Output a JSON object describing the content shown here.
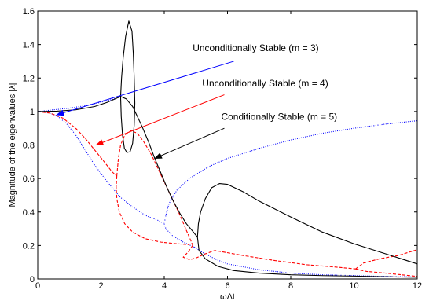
{
  "chart_data": {
    "type": "line",
    "title": "",
    "xlabel": "ωΔt",
    "ylabel": "Magnitude of the eigenvalues |λ|",
    "xlim": [
      0,
      12
    ],
    "ylim": [
      0,
      1.6
    ],
    "xticks": [
      0,
      2,
      4,
      6,
      8,
      10,
      12
    ],
    "yticks": [
      0,
      0.2,
      0.4,
      0.6,
      0.8,
      1,
      1.2,
      1.4,
      1.6
    ],
    "grid": false,
    "legend": "none",
    "colors": {
      "m3": "#0000ff",
      "m4": "#ff0000",
      "m5": "#000000"
    },
    "series": [
      {
        "key": "m3",
        "style": "dotted",
        "color": "#0000ff",
        "points": [
          [
            0,
            1.0
          ],
          [
            0.3,
            0.995
          ],
          [
            0.6,
            0.975
          ],
          [
            0.9,
            0.93
          ],
          [
            1.2,
            0.86
          ],
          [
            1.5,
            0.77
          ],
          [
            1.8,
            0.68
          ],
          [
            2.2,
            0.58
          ],
          [
            2.6,
            0.49
          ],
          [
            3.0,
            0.43
          ],
          [
            3.4,
            0.38
          ],
          [
            3.8,
            0.35
          ],
          [
            4.0,
            0.33
          ]
        ]
      },
      {
        "key": "m3",
        "style": "dotted",
        "color": "#0000ff",
        "points": [
          [
            0,
            1.0
          ],
          [
            0.5,
            1.01
          ],
          [
            1.0,
            1.02
          ],
          [
            1.5,
            1.035
          ],
          [
            2.0,
            1.055
          ],
          [
            2.4,
            1.075
          ],
          [
            2.6,
            1.085
          ]
        ]
      },
      {
        "key": "m3",
        "style": "dotted",
        "color": "#0000ff",
        "points": [
          [
            4.95,
            0.19
          ],
          [
            4.6,
            0.22
          ],
          [
            4.25,
            0.26
          ],
          [
            4.05,
            0.3
          ],
          [
            4.0,
            0.33
          ],
          [
            4.05,
            0.38
          ],
          [
            4.15,
            0.45
          ],
          [
            4.4,
            0.53
          ],
          [
            4.8,
            0.6
          ],
          [
            5.4,
            0.67
          ],
          [
            6.0,
            0.72
          ],
          [
            7.0,
            0.78
          ],
          [
            8.0,
            0.83
          ],
          [
            9.0,
            0.87
          ],
          [
            10.0,
            0.9
          ],
          [
            11.0,
            0.925
          ],
          [
            12.0,
            0.945
          ]
        ]
      },
      {
        "key": "m3",
        "style": "dotted",
        "color": "#0000ff",
        "points": [
          [
            4.95,
            0.19
          ],
          [
            5.2,
            0.16
          ],
          [
            5.6,
            0.12
          ],
          [
            6.0,
            0.09
          ],
          [
            7.0,
            0.055
          ],
          [
            8.0,
            0.035
          ],
          [
            9.0,
            0.025
          ],
          [
            10.0,
            0.02
          ],
          [
            11.0,
            0.015
          ],
          [
            12.0,
            0.012
          ]
        ]
      },
      {
        "key": "m4",
        "style": "dashed",
        "color": "#ff0000",
        "points": [
          [
            0,
            1.0
          ],
          [
            0.4,
            0.99
          ],
          [
            0.8,
            0.96
          ],
          [
            1.2,
            0.9
          ],
          [
            1.5,
            0.84
          ],
          [
            1.8,
            0.77
          ],
          [
            2.1,
            0.7
          ],
          [
            2.35,
            0.64
          ],
          [
            2.5,
            0.615
          ]
        ]
      },
      {
        "key": "m4",
        "style": "dashed",
        "color": "#ff0000",
        "points": [
          [
            2.5,
            0.615
          ],
          [
            2.48,
            0.55
          ],
          [
            2.5,
            0.48
          ],
          [
            2.58,
            0.4
          ],
          [
            2.75,
            0.33
          ],
          [
            3.0,
            0.28
          ],
          [
            3.4,
            0.24
          ],
          [
            3.9,
            0.22
          ],
          [
            4.4,
            0.21
          ],
          [
            4.8,
            0.205
          ]
        ]
      },
      {
        "key": "m4",
        "style": "dashed",
        "color": "#ff0000",
        "points": [
          [
            2.5,
            0.615
          ],
          [
            2.55,
            0.72
          ],
          [
            2.62,
            0.8
          ],
          [
            2.75,
            0.86
          ],
          [
            2.95,
            0.885
          ],
          [
            3.15,
            0.87
          ],
          [
            3.35,
            0.82
          ],
          [
            3.6,
            0.74
          ],
          [
            3.9,
            0.62
          ],
          [
            4.2,
            0.5
          ],
          [
            4.5,
            0.38
          ],
          [
            4.7,
            0.29
          ],
          [
            4.85,
            0.225
          ],
          [
            4.9,
            0.2
          ]
        ]
      },
      {
        "key": "m4",
        "style": "dashed",
        "color": "#ff0000",
        "points": [
          [
            4.9,
            0.2
          ],
          [
            4.75,
            0.16
          ],
          [
            4.6,
            0.13
          ],
          [
            4.8,
            0.115
          ],
          [
            5.0,
            0.125
          ],
          [
            5.3,
            0.15
          ],
          [
            5.6,
            0.17
          ],
          [
            6.5,
            0.14
          ],
          [
            7.5,
            0.11
          ],
          [
            8.5,
            0.085
          ],
          [
            9.5,
            0.07
          ],
          [
            10.05,
            0.06
          ]
        ]
      },
      {
        "key": "m4",
        "style": "dashed",
        "color": "#ff0000",
        "points": [
          [
            10.05,
            0.06
          ],
          [
            10.3,
            0.095
          ],
          [
            10.8,
            0.12
          ],
          [
            11.4,
            0.14
          ],
          [
            12.0,
            0.175
          ]
        ]
      },
      {
        "key": "m4",
        "style": "dashed",
        "color": "#ff0000",
        "points": [
          [
            10.05,
            0.06
          ],
          [
            10.4,
            0.045
          ],
          [
            11.0,
            0.035
          ],
          [
            11.5,
            0.025
          ],
          [
            12.0,
            0.015
          ]
        ]
      },
      {
        "key": "m5",
        "style": "solid",
        "color": "#000000",
        "points": [
          [
            0,
            1.0
          ],
          [
            0.6,
            1.002
          ],
          [
            1.2,
            1.01
          ],
          [
            1.8,
            1.03
          ],
          [
            2.2,
            1.055
          ],
          [
            2.5,
            1.08
          ],
          [
            2.62,
            1.09
          ]
        ]
      },
      {
        "key": "m5",
        "style": "solid",
        "color": "#000000",
        "points": [
          [
            2.62,
            1.09
          ],
          [
            2.65,
            1.2
          ],
          [
            2.7,
            1.32
          ],
          [
            2.78,
            1.45
          ],
          [
            2.88,
            1.54
          ],
          [
            2.98,
            1.48
          ],
          [
            3.02,
            1.35
          ],
          [
            3.05,
            1.2
          ],
          [
            3.07,
            1.05
          ],
          [
            3.05,
            0.92
          ],
          [
            3.0,
            0.81
          ],
          [
            2.92,
            0.76
          ],
          [
            2.82,
            0.755
          ],
          [
            2.74,
            0.78
          ],
          [
            2.68,
            0.86
          ],
          [
            2.64,
            0.97
          ],
          [
            2.62,
            1.09
          ]
        ]
      },
      {
        "key": "m5",
        "style": "solid",
        "color": "#000000",
        "points": [
          [
            2.62,
            1.09
          ],
          [
            2.8,
            1.075
          ],
          [
            3.0,
            1.03
          ],
          [
            3.15,
            0.97
          ]
        ]
      },
      {
        "key": "m5",
        "style": "solid",
        "color": "#000000",
        "points": [
          [
            3.15,
            0.97
          ],
          [
            3.3,
            0.91
          ],
          [
            3.5,
            0.82
          ],
          [
            3.7,
            0.72
          ],
          [
            3.9,
            0.63
          ],
          [
            4.1,
            0.54
          ],
          [
            4.3,
            0.46
          ],
          [
            4.5,
            0.39
          ],
          [
            4.7,
            0.33
          ],
          [
            4.9,
            0.285
          ],
          [
            5.05,
            0.25
          ]
        ]
      },
      {
        "key": "m5",
        "style": "solid",
        "color": "#000000",
        "points": [
          [
            5.05,
            0.25
          ],
          [
            5.08,
            0.33
          ],
          [
            5.15,
            0.4
          ],
          [
            5.3,
            0.48
          ],
          [
            5.5,
            0.545
          ],
          [
            5.75,
            0.57
          ],
          [
            6.0,
            0.565
          ],
          [
            6.5,
            0.52
          ],
          [
            7.0,
            0.465
          ],
          [
            8.0,
            0.37
          ],
          [
            9.0,
            0.28
          ],
          [
            10.0,
            0.21
          ],
          [
            11.0,
            0.15
          ],
          [
            12.0,
            0.09
          ]
        ]
      },
      {
        "key": "m5",
        "style": "solid",
        "color": "#000000",
        "points": [
          [
            5.05,
            0.25
          ],
          [
            5.1,
            0.17
          ],
          [
            5.3,
            0.12
          ],
          [
            5.7,
            0.075
          ],
          [
            6.2,
            0.05
          ],
          [
            7.0,
            0.035
          ],
          [
            8.0,
            0.025
          ],
          [
            9.0,
            0.02
          ],
          [
            10.0,
            0.017
          ],
          [
            11.0,
            0.013
          ],
          [
            12.0,
            0.01
          ]
        ]
      }
    ],
    "annotations": [
      {
        "text": "Unconditionally Stable (m = 3)",
        "color": "#0000ff",
        "text_at": [
          4.9,
          1.36
        ],
        "arrow_from": [
          6.2,
          1.3
        ],
        "arrow_to": [
          0.6,
          0.98
        ]
      },
      {
        "text": "Unconditionally Stable (m = 4)",
        "color": "#ff0000",
        "text_at": [
          5.2,
          1.15
        ],
        "arrow_from": [
          5.9,
          1.1
        ],
        "arrow_to": [
          1.85,
          0.8
        ]
      },
      {
        "text": "Conditionally Stable (m = 5)",
        "color": "#000000",
        "text_at": [
          5.8,
          0.95
        ],
        "arrow_from": [
          5.9,
          0.9
        ],
        "arrow_to": [
          3.7,
          0.72
        ]
      }
    ]
  }
}
